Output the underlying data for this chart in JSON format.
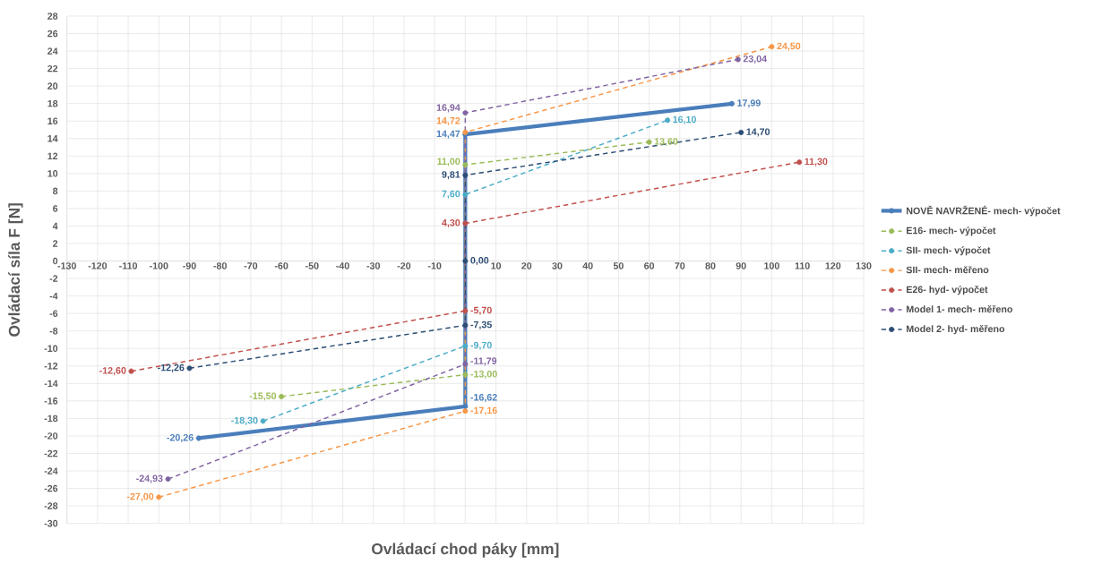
{
  "chart_data": {
    "type": "line",
    "xlabel": "Ovládací chod páky [mm]",
    "ylabel": "Ovládací síla F [N]",
    "xlim": [
      -130,
      130
    ],
    "ylim": [
      -30,
      28
    ],
    "xticks": [
      -130,
      -120,
      -110,
      -100,
      -90,
      -80,
      -70,
      -60,
      -50,
      -40,
      -30,
      -20,
      -10,
      {
        "value": 0,
        "label": null
      },
      10,
      20,
      30,
      40,
      50,
      60,
      70,
      80,
      90,
      100,
      110,
      120,
      130
    ],
    "yticks": [
      -30,
      -28,
      -26,
      -24,
      -22,
      -20,
      -18,
      -16,
      -14,
      -12,
      -10,
      -8,
      -6,
      -4,
      -2,
      0,
      2,
      4,
      6,
      8,
      10,
      12,
      14,
      16,
      18,
      20,
      22,
      24,
      26,
      28
    ],
    "grid": true,
    "legend": "right",
    "marker": "circle",
    "series": [
      {
        "name": "NOVĚ NAVRŽENÉ- mech- výpočet",
        "color": "#4a7ebb",
        "line_style": "solid",
        "x": [
          -87,
          0,
          0,
          87
        ],
        "values": [
          -20.26,
          -16.62,
          14.47,
          17.99
        ],
        "value_labels": [
          "-20,26",
          "-16,62",
          "14,47",
          "17,99"
        ]
      },
      {
        "name": "E16- mech- výpočet",
        "color": "#9bbb59",
        "line_style": "dashed",
        "x": [
          -60,
          0,
          0,
          60
        ],
        "values": [
          -15.5,
          -13.0,
          11.0,
          13.6
        ],
        "value_labels": [
          "-15,50",
          "-13,00",
          "11,00",
          "13,60"
        ]
      },
      {
        "name": "SII- mech- výpočet",
        "color": "#4bacc6",
        "line_style": "dashed",
        "x": [
          -66,
          0,
          0,
          66
        ],
        "values": [
          -18.3,
          -9.7,
          7.6,
          16.1
        ],
        "value_labels": [
          "-18,30",
          "-9,70",
          "7,60",
          "16,10"
        ]
      },
      {
        "name": "SII- mech- měřeno",
        "color": "#f79646",
        "line_style": "dashed",
        "x": [
          -100,
          0,
          0,
          100
        ],
        "values": [
          -27.0,
          -17.16,
          14.72,
          24.5
        ],
        "value_labels": [
          "-27,00",
          "-17,16",
          "14,72",
          "24,50"
        ]
      },
      {
        "name": "E26- hyd- výpočet",
        "color": "#c0504d",
        "line_style": "dashed",
        "x": [
          -109,
          0,
          0,
          109
        ],
        "values": [
          -12.6,
          -5.7,
          4.3,
          11.3
        ],
        "value_labels": [
          "-12,60",
          "-5,70",
          "4,30",
          "11,30"
        ]
      },
      {
        "name": "Model 1- mech- měřeno",
        "color": "#8064a2",
        "line_style": "dashed",
        "x": [
          -97,
          0,
          0,
          89
        ],
        "values": [
          -24.93,
          -11.79,
          16.94,
          23.04
        ],
        "value_labels": [
          "-24,93",
          "-11,79",
          "16,94",
          "23,04"
        ]
      },
      {
        "name": "Model 2- hyd- měřeno",
        "color": "#2c4d75",
        "line_style": "dashed",
        "x": [
          -90,
          0,
          0,
          0,
          90
        ],
        "values": [
          -12.26,
          -7.35,
          0.0,
          9.81,
          14.7
        ],
        "value_labels": [
          "-12,26",
          "-7,35",
          "0,00",
          "9,81",
          "14,70"
        ]
      }
    ]
  }
}
